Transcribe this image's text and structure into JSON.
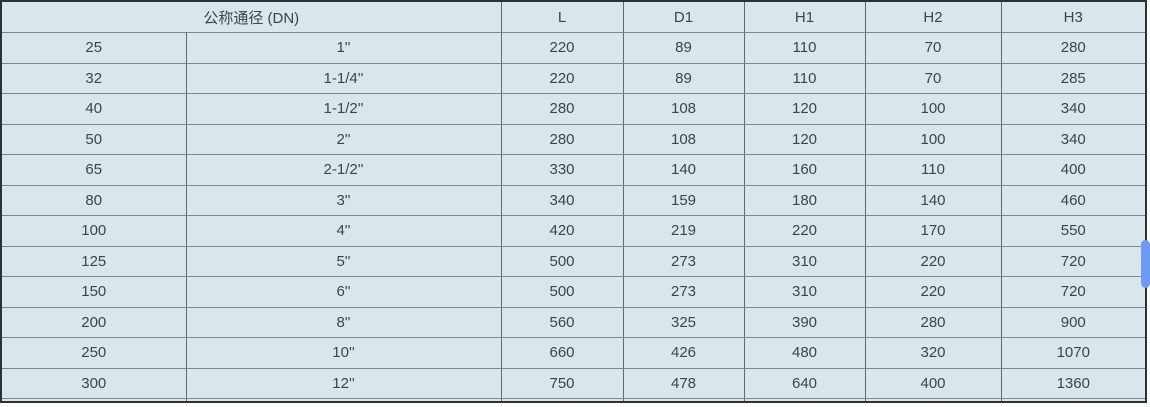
{
  "table": {
    "dn_header": "公称通径 (DN)",
    "columns": [
      "L",
      "D1",
      "H1",
      "H2",
      "H3"
    ],
    "rows": [
      {
        "dn": "25",
        "inch": "1''",
        "values": [
          "220",
          "89",
          "110",
          "70",
          "280"
        ]
      },
      {
        "dn": "32",
        "inch": "1-1/4''",
        "values": [
          "220",
          "89",
          "110",
          "70",
          "285"
        ]
      },
      {
        "dn": "40",
        "inch": "1-1/2''",
        "values": [
          "280",
          "108",
          "120",
          "100",
          "340"
        ]
      },
      {
        "dn": "50",
        "inch": "2''",
        "values": [
          "280",
          "108",
          "120",
          "100",
          "340"
        ]
      },
      {
        "dn": "65",
        "inch": "2-1/2''",
        "values": [
          "330",
          "140",
          "160",
          "110",
          "400"
        ]
      },
      {
        "dn": "80",
        "inch": "3''",
        "values": [
          "340",
          "159",
          "180",
          "140",
          "460"
        ]
      },
      {
        "dn": "100",
        "inch": "4''",
        "values": [
          "420",
          "219",
          "220",
          "170",
          "550"
        ]
      },
      {
        "dn": "125",
        "inch": "5''",
        "values": [
          "500",
          "273",
          "310",
          "220",
          "720"
        ]
      },
      {
        "dn": "150",
        "inch": "6''",
        "values": [
          "500",
          "273",
          "310",
          "220",
          "720"
        ]
      },
      {
        "dn": "200",
        "inch": "8''",
        "values": [
          "560",
          "325",
          "390",
          "280",
          "900"
        ]
      },
      {
        "dn": "250",
        "inch": "10''",
        "values": [
          "660",
          "426",
          "480",
          "320",
          "1070"
        ]
      },
      {
        "dn": "300",
        "inch": "12''",
        "values": [
          "750",
          "478",
          "640",
          "400",
          "1360"
        ]
      }
    ]
  },
  "colors": {
    "cell_background": "#d9e6ec",
    "horizontal_border": "#7f868b",
    "vertical_border": "#61676b",
    "outer_border": "#2f3235",
    "text": "#3f4448",
    "scrollbar_thumb": "#6d9bf3"
  }
}
